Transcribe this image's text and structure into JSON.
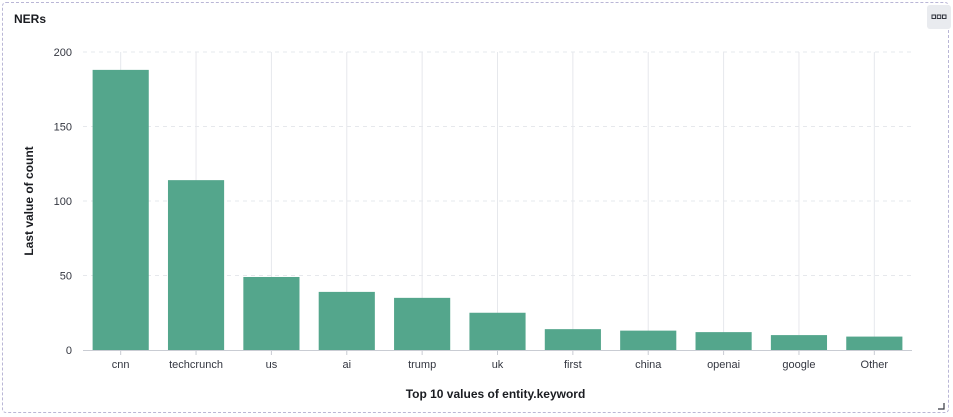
{
  "panel": {
    "title": "NERs",
    "menu_icon": "ellipsis-icon",
    "resize_icon": "resize-corner-icon"
  },
  "colors": {
    "bar": "#54a68c",
    "grid": "#e6e8ec",
    "axis": "#c9ccd3"
  },
  "chart_data": {
    "type": "bar",
    "title": "",
    "xlabel": "Top 10 values of entity.keyword",
    "ylabel": "Last value of count",
    "categories": [
      "cnn",
      "techcrunch",
      "us",
      "ai",
      "trump",
      "uk",
      "first",
      "china",
      "openai",
      "google",
      "Other"
    ],
    "values": [
      188,
      114,
      49,
      39,
      35,
      25,
      14,
      13,
      12,
      10,
      9
    ],
    "ylim": [
      0,
      200
    ],
    "yticks": [
      0,
      50,
      100,
      150,
      200
    ],
    "grid": true,
    "legend": "none"
  }
}
